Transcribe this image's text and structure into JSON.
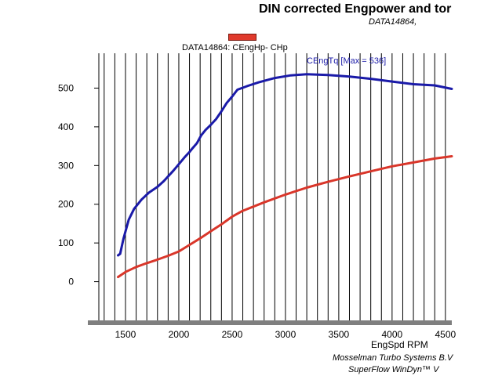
{
  "chart_data": {
    "type": "line",
    "title": "DIN corrected Engpower and tor",
    "subtitle": "DATA14864,",
    "legend_label": "DATA14864: CEngHp-  CHp",
    "xlabel": "EngSpd  RPM",
    "annotation": "CEngTq [Max = 536]",
    "credits": [
      "Mosselman Turbo Systems B.V",
      "SuperFlow WinDyn™ V"
    ],
    "xlim": [
      1250,
      4560
    ],
    "ylim": [
      -100,
      590
    ],
    "x_ticks": [
      "1500",
      "2000",
      "2500",
      "3000",
      "3500",
      "4000",
      "4500"
    ],
    "y_ticks": [
      "0",
      "100",
      "200",
      "300",
      "400",
      "500"
    ],
    "grid": true,
    "series": [
      {
        "key": "torque",
        "color": "#1a1aa8",
        "x": [
          1430,
          1450,
          1480,
          1530,
          1580,
          1650,
          1720,
          1800,
          1860,
          1950,
          2050,
          2100,
          2130,
          2170,
          2210,
          2250,
          2300,
          2350,
          2400,
          2450,
          2500,
          2550,
          2650,
          2750,
          2900,
          3050,
          3200,
          3400,
          3600,
          3800,
          4000,
          4200,
          4400,
          4560
        ],
        "values": [
          68,
          72,
          110,
          160,
          188,
          212,
          230,
          245,
          260,
          287,
          320,
          335,
          345,
          358,
          378,
          392,
          405,
          420,
          440,
          462,
          478,
          496,
          506,
          515,
          526,
          533,
          536,
          534,
          530,
          524,
          517,
          510,
          507,
          498
        ]
      },
      {
        "key": "power",
        "color": "#d9362a",
        "x": [
          1430,
          1500,
          1600,
          1700,
          1800,
          1900,
          2000,
          2100,
          2200,
          2300,
          2400,
          2500,
          2600,
          2800,
          3000,
          3200,
          3400,
          3600,
          3800,
          4000,
          4200,
          4400,
          4560
        ],
        "values": [
          12,
          25,
          38,
          48,
          57,
          67,
          78,
          95,
          112,
          130,
          148,
          168,
          183,
          205,
          225,
          243,
          258,
          272,
          285,
          298,
          308,
          318,
          324
        ]
      }
    ]
  }
}
